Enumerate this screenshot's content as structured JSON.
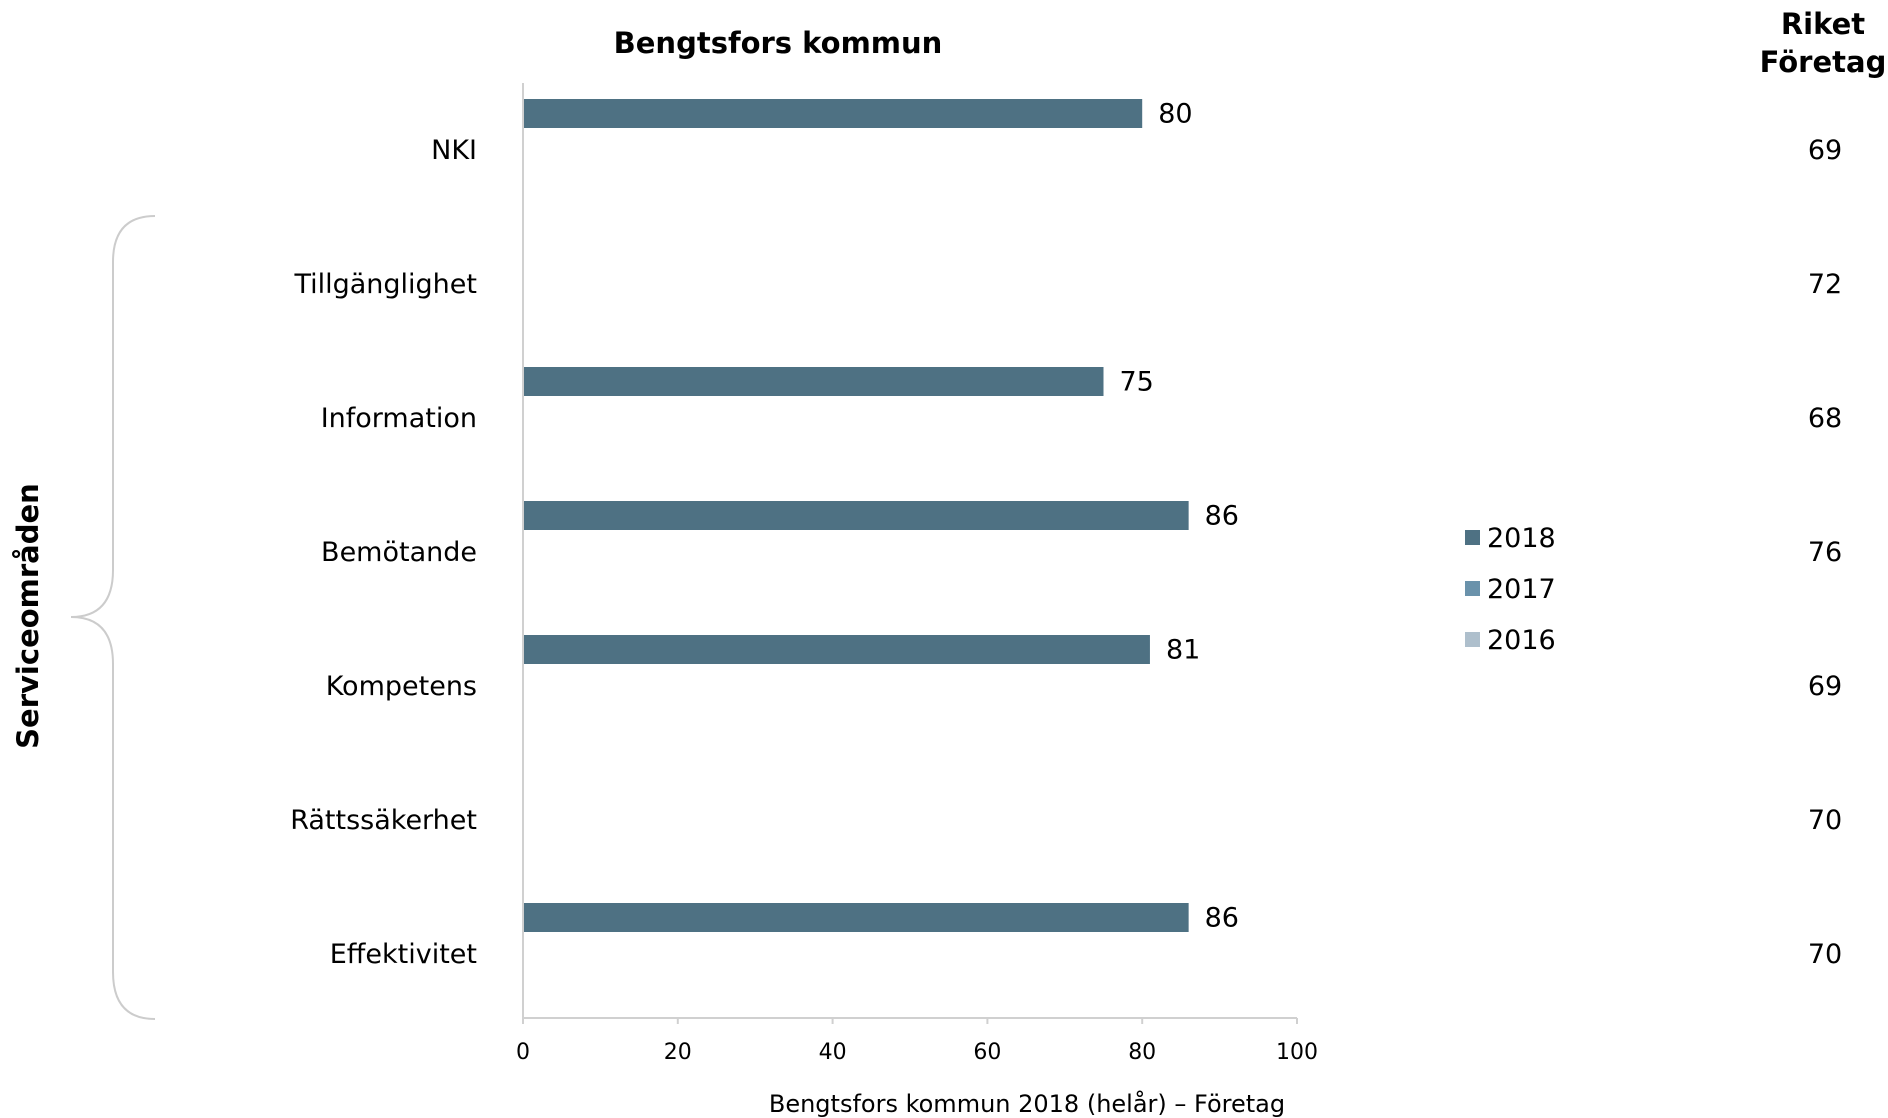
{
  "chart_data": {
    "type": "bar",
    "orientation": "horizontal",
    "title": "Bengtsfors kommun",
    "xlabel": "Bengtsfors kommun 2018 (helår) – Företag",
    "ylabel": "Serviceområden",
    "xlim": [
      0,
      100
    ],
    "xticks": [
      0,
      20,
      40,
      60,
      80,
      100
    ],
    "grid": false,
    "legend_position": "right",
    "categories": [
      "NKI",
      "Tillgänglighet",
      "Information",
      "Bemötande",
      "Kompetens",
      "Rättssäkerhet",
      "Effektivitet"
    ],
    "series": [
      {
        "name": "2018",
        "color": "#4e7183",
        "values": [
          80,
          null,
          75,
          86,
          81,
          null,
          86
        ]
      },
      {
        "name": "2017",
        "color": "#6a92ab",
        "values": [
          null,
          null,
          null,
          null,
          null,
          null,
          null
        ]
      },
      {
        "name": "2016",
        "color": "#aebfcc",
        "values": [
          null,
          null,
          null,
          null,
          null,
          null,
          null
        ]
      }
    ],
    "riket": {
      "title_line1": "Riket",
      "title_line2": "Företag",
      "values": [
        69,
        72,
        68,
        76,
        69,
        70,
        70
      ]
    }
  }
}
